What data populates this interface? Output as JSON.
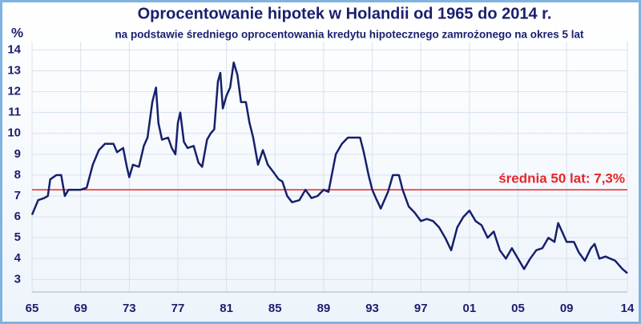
{
  "chart_data": {
    "type": "line",
    "title": "Oprocentowanie hipotek w Holandii od 1965 do 2014 r.",
    "subtitle": "na podstawie średniego oprocentowania kredytu hipotecznego zamrożonego na okres 5 lat",
    "y_label": "%",
    "annotation": "średnia 50 lat: 7,3%",
    "mean": 7.3,
    "mean_color": "#e8252a",
    "color": "#16206b",
    "grid": true,
    "x": [
      1965.0,
      1965.5,
      1966.0,
      1966.3,
      1966.5,
      1967.0,
      1967.4,
      1967.7,
      1968.0,
      1969.0,
      1969.5,
      1970.0,
      1970.5,
      1971.0,
      1971.7,
      1972.0,
      1972.5,
      1972.8,
      1973.0,
      1973.3,
      1973.8,
      1974.2,
      1974.5,
      1974.9,
      1975.2,
      1975.4,
      1975.7,
      1976.2,
      1976.5,
      1976.8,
      1977.0,
      1977.2,
      1977.5,
      1977.8,
      1978.3,
      1978.7,
      1979.0,
      1979.4,
      1979.7,
      1980.0,
      1980.3,
      1980.5,
      1980.7,
      1981.0,
      1981.3,
      1981.6,
      1981.9,
      1982.2,
      1982.6,
      1982.9,
      1983.2,
      1983.6,
      1984.0,
      1984.4,
      1984.8,
      1985.3,
      1985.6,
      1986.0,
      1986.4,
      1987.0,
      1987.5,
      1988.0,
      1988.5,
      1989.0,
      1989.4,
      1990.0,
      1990.5,
      1991.0,
      1992.0,
      1992.3,
      1992.7,
      1993.0,
      1993.3,
      1993.7,
      1994.3,
      1994.7,
      1995.2,
      1995.5,
      1996.0,
      1996.5,
      1997.0,
      1997.5,
      1998.0,
      1998.5,
      1999.0,
      1999.5,
      2000.0,
      2000.5,
      2001.0,
      2001.5,
      2002.0,
      2002.5,
      2003.0,
      2003.5,
      2004.0,
      2004.5,
      2005.0,
      2005.5,
      2006.0,
      2006.5,
      2007.0,
      2007.5,
      2008.0,
      2008.3,
      2008.7,
      2009.0,
      2009.6,
      2010.0,
      2010.5,
      2011.0,
      2011.3,
      2011.7,
      2012.2,
      2013.0,
      2013.6,
      2014.0
    ],
    "values": [
      6.1,
      6.8,
      6.9,
      7.0,
      7.8,
      8.0,
      8.0,
      7.0,
      7.3,
      7.3,
      7.4,
      8.5,
      9.2,
      9.5,
      9.5,
      9.1,
      9.3,
      8.4,
      7.9,
      8.5,
      8.4,
      9.4,
      9.8,
      11.5,
      12.2,
      10.5,
      9.7,
      9.8,
      9.3,
      9.0,
      10.5,
      11.0,
      9.6,
      9.3,
      9.4,
      8.6,
      8.4,
      9.7,
      10.0,
      10.2,
      12.5,
      12.9,
      11.2,
      11.8,
      12.2,
      13.4,
      12.8,
      11.5,
      11.5,
      10.5,
      9.8,
      8.5,
      9.2,
      8.5,
      8.2,
      7.8,
      7.7,
      7.0,
      6.7,
      6.8,
      7.3,
      6.9,
      7.0,
      7.3,
      7.2,
      9.0,
      9.5,
      9.8,
      9.8,
      9.1,
      8.0,
      7.3,
      6.9,
      6.4,
      7.2,
      8.0,
      8.0,
      7.3,
      6.5,
      6.2,
      5.8,
      5.9,
      5.8,
      5.5,
      5.0,
      4.4,
      5.5,
      6.0,
      6.3,
      5.8,
      5.6,
      5.0,
      5.3,
      4.4,
      4.0,
      4.5,
      4.0,
      3.5,
      4.0,
      4.4,
      4.5,
      5.0,
      4.8,
      5.7,
      5.2,
      4.8,
      4.8,
      4.3,
      3.9,
      4.5,
      4.7,
      4.0,
      4.1,
      3.9,
      3.5,
      3.3
    ],
    "xlim": [
      1965,
      2014
    ],
    "ylim": [
      2.4,
      14.4
    ],
    "xticks": [
      {
        "value": 1965,
        "label": "65"
      },
      {
        "value": 1969,
        "label": "69"
      },
      {
        "value": 1973,
        "label": "73"
      },
      {
        "value": 1977,
        "label": "77"
      },
      {
        "value": 1981,
        "label": "81"
      },
      {
        "value": 1985,
        "label": "85"
      },
      {
        "value": 1989,
        "label": "89"
      },
      {
        "value": 1993,
        "label": "93"
      },
      {
        "value": 1997,
        "label": "97"
      },
      {
        "value": 2001,
        "label": "01"
      },
      {
        "value": 2005,
        "label": "05"
      },
      {
        "value": 2009,
        "label": "09"
      },
      {
        "value": 2014,
        "label": "14"
      }
    ],
    "yticks": [
      3,
      4,
      5,
      6,
      7,
      8,
      9,
      10,
      11,
      12,
      13,
      14
    ]
  }
}
